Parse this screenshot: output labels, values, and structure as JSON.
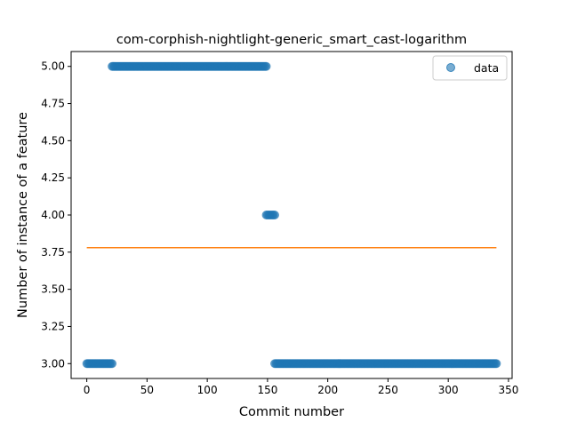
{
  "chart_data": {
    "type": "scatter",
    "title": "com-corphish-nightlight-generic_smart_cast-logarithm",
    "xlabel": "Commit number",
    "ylabel": "Number of instance of a feature",
    "xlim": [
      -13,
      353
    ],
    "ylim": [
      2.9,
      5.1
    ],
    "x_ticks": [
      0,
      50,
      100,
      150,
      200,
      250,
      300,
      350
    ],
    "x_tick_labels": [
      "0",
      "50",
      "100",
      "150",
      "200",
      "250",
      "300",
      "350"
    ],
    "y_ticks": [
      3.0,
      3.25,
      3.5,
      3.75,
      4.0,
      4.25,
      4.5,
      4.75,
      5.0
    ],
    "y_tick_labels": [
      "3.00",
      "3.25",
      "3.50",
      "3.75",
      "4.00",
      "4.25",
      "4.50",
      "4.75",
      "5.00"
    ],
    "grid": false,
    "legend_position": "top-right",
    "colors": {
      "data": "#1f77b4",
      "fit": "#ff7f0e"
    },
    "series": [
      {
        "name": "data",
        "kind": "scatter",
        "segments": [
          {
            "x_start": 0,
            "x_end": 21,
            "y": 3.0
          },
          {
            "x_start": 21,
            "x_end": 149,
            "y": 5.0
          },
          {
            "x_start": 149,
            "x_end": 156,
            "y": 4.0
          },
          {
            "x_start": 156,
            "x_end": 340,
            "y": 3.0
          }
        ]
      },
      {
        "kind": "line",
        "x": [
          0,
          340
        ],
        "y": [
          3.78,
          3.78
        ]
      }
    ]
  }
}
